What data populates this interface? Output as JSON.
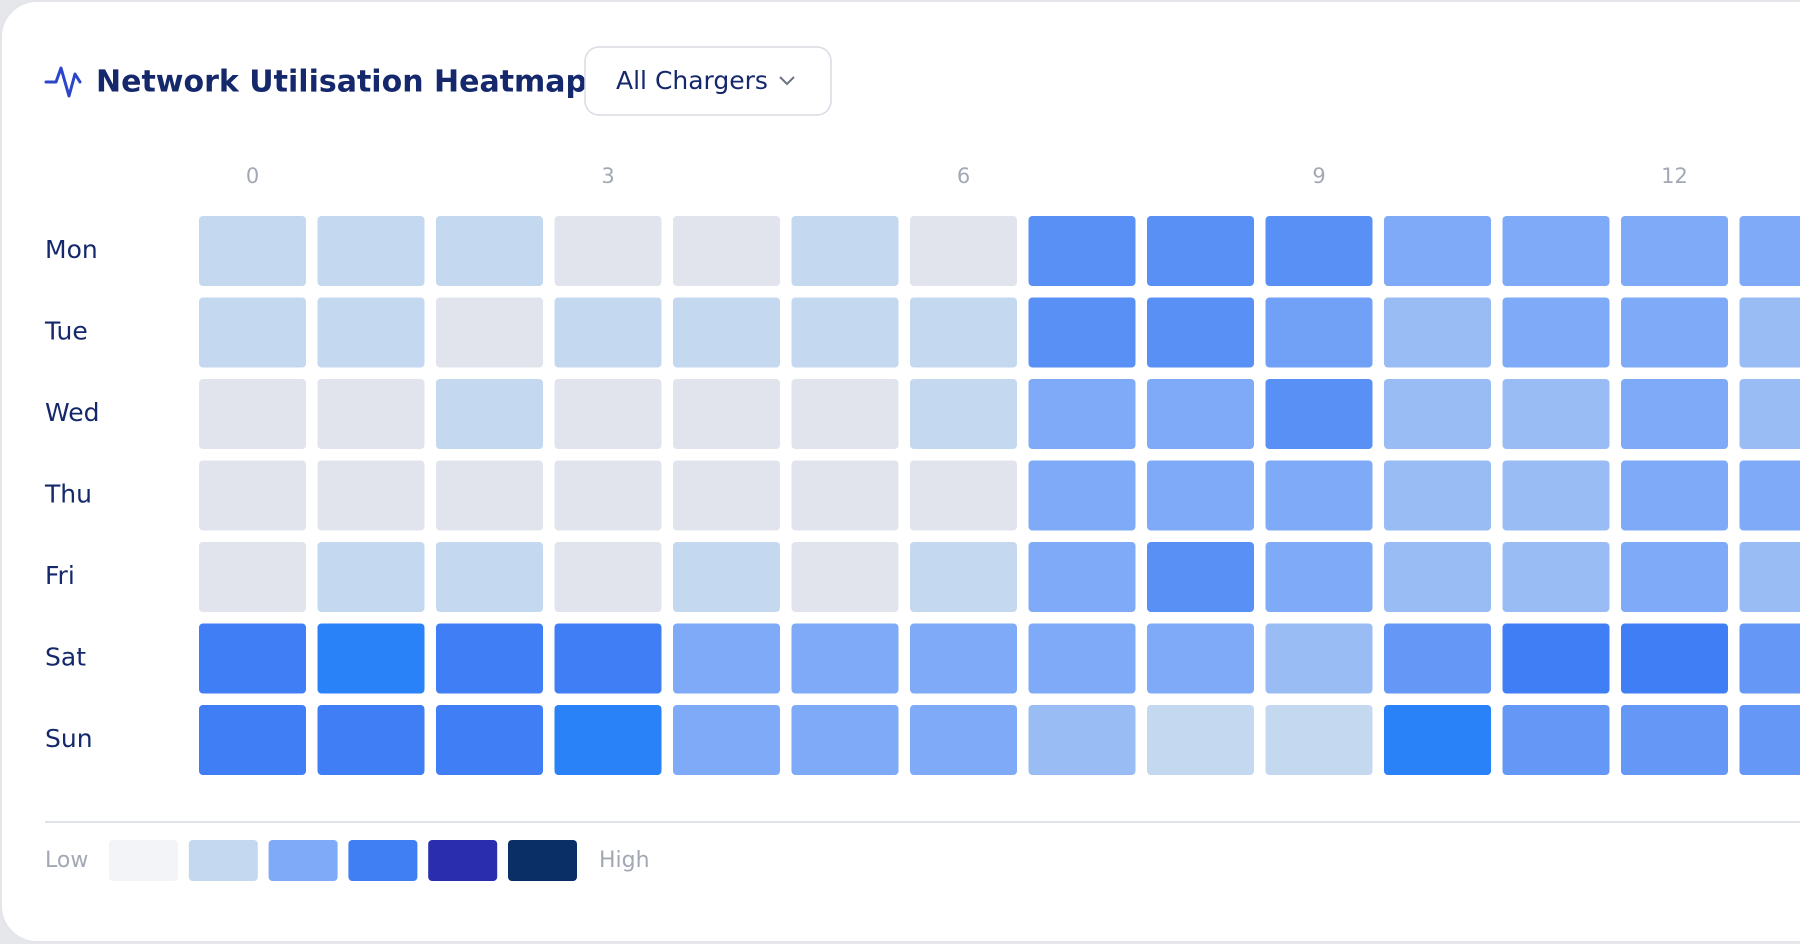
{
  "chart_data": {
    "type": "heatmap",
    "title": "Network Utilisation Heatmap",
    "filter": "All Chargers",
    "categories": [
      0,
      null,
      null,
      3,
      null,
      null,
      6,
      null,
      null,
      9,
      null,
      null,
      12,
      null
    ],
    "y_categories": [
      "Mon",
      "Tue",
      "Wed",
      "Thu",
      "Fri",
      "Sat",
      "Sun"
    ],
    "values": [
      [
        25,
        25,
        25,
        0,
        0,
        25,
        0,
        65,
        65,
        65,
        50,
        50,
        50,
        50
      ],
      [
        25,
        25,
        0,
        25,
        25,
        25,
        25,
        65,
        65,
        55,
        40,
        50,
        50,
        40
      ],
      [
        0,
        0,
        25,
        0,
        0,
        0,
        25,
        50,
        50,
        65,
        40,
        40,
        50,
        40
      ],
      [
        0,
        0,
        0,
        0,
        0,
        0,
        0,
        50,
        50,
        50,
        40,
        40,
        50,
        50
      ],
      [
        0,
        25,
        25,
        0,
        25,
        0,
        25,
        50,
        65,
        50,
        40,
        40,
        50,
        40
      ],
      [
        75,
        95,
        75,
        75,
        50,
        50,
        50,
        50,
        50,
        40,
        60,
        75,
        75,
        60
      ],
      [
        75,
        75,
        75,
        95,
        50,
        50,
        50,
        40,
        25,
        25,
        95,
        60,
        60,
        60
      ]
    ],
    "colorscale": [
      {
        "value": 0,
        "color": "#e1e4ec"
      },
      {
        "value": 25,
        "color": "#c4d8f0"
      },
      {
        "value": 50,
        "color": "#7eaaf7"
      },
      {
        "value": 75,
        "color": "#3f7ef5"
      },
      {
        "value": 100,
        "color": "#2383f7"
      }
    ],
    "legend": {
      "low": "Low",
      "high": "High",
      "colors": [
        "#f3f4f8",
        "#c4d8f0",
        "#7eaaf7",
        "#407ef3",
        "#2a2eae",
        "#0a2f66"
      ]
    }
  }
}
